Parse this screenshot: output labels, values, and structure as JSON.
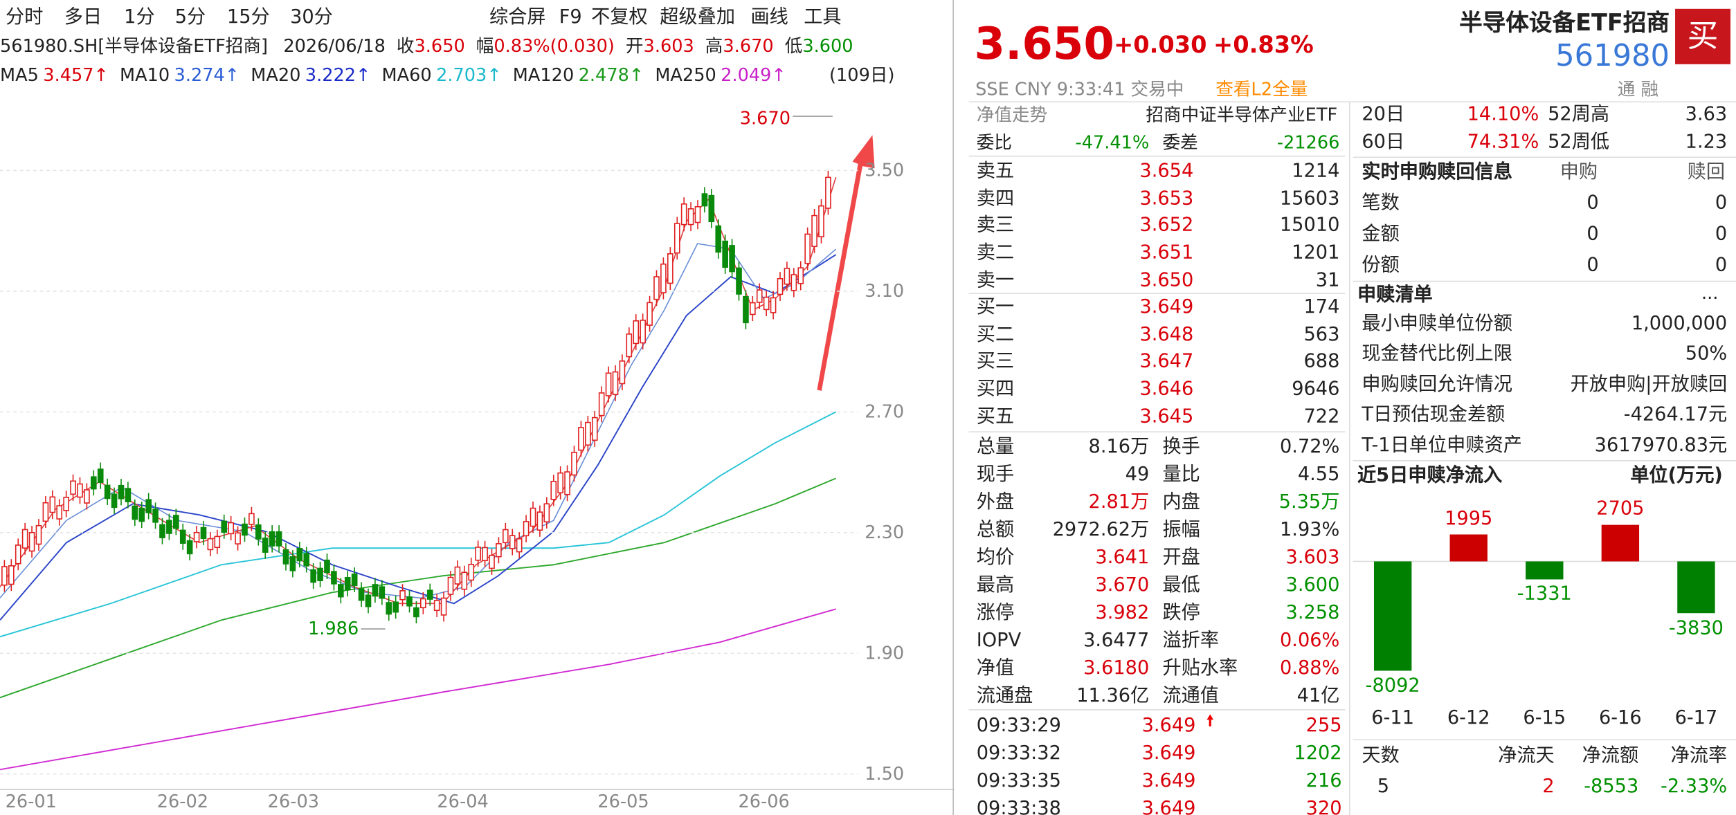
{
  "toolbar": {
    "periods": [
      "分时",
      "多日",
      "1分",
      "5分",
      "15分",
      "30分"
    ],
    "tools": [
      "综合屏",
      "F9",
      "不复权",
      "超级叠加",
      "画线",
      "工具"
    ]
  },
  "quote_line": {
    "code": "561980.SH[半导体设备ETF招商]",
    "date": "2026/06/18",
    "items": [
      {
        "label": "收",
        "value": "3.650"
      },
      {
        "label": "幅",
        "value": "0.83%(0.030)"
      },
      {
        "label": "开",
        "value": "3.603"
      },
      {
        "label": "高",
        "value": "3.670"
      },
      {
        "label": "低",
        "value": "3.600"
      }
    ]
  },
  "ma_line": {
    "items": [
      {
        "name": "MA5",
        "value": "3.457↑"
      },
      {
        "name": "MA10",
        "value": "3.274↑"
      },
      {
        "name": "MA20",
        "value": "3.222↑"
      },
      {
        "name": "MA60",
        "value": "2.703↑"
      },
      {
        "name": "MA120",
        "value": "2.478↑"
      },
      {
        "name": "MA250",
        "value": "2.049↑"
      }
    ],
    "range": "(109日)"
  },
  "chart": {
    "high_label": "3.670",
    "low_label": "1.986",
    "yticks": [
      {
        "value": 3.5,
        "label": "3.50"
      },
      {
        "value": 3.1,
        "label": "3.10"
      },
      {
        "value": 2.7,
        "label": "2.70"
      },
      {
        "value": 2.3,
        "label": "2.30"
      },
      {
        "value": 1.9,
        "label": "1.90"
      },
      {
        "value": 1.5,
        "label": "1.50"
      }
    ],
    "xlabels": [
      "26-01",
      "26-02",
      "26-03",
      "26-04",
      "26-05",
      "26-06"
    ]
  },
  "header": {
    "price": "3.650",
    "change": "+0.030",
    "change_pct": "+0.83%",
    "name": "半导体设备ETF招商",
    "code": "561980",
    "buy_button": "买",
    "status": "SSE  CNY  9:33:41  交易中",
    "l2_link": "查看L2全量",
    "tags": "通  融"
  },
  "nav_row": {
    "label": "净值走势",
    "value": "招商中证半导体产业ETF"
  },
  "ratio_row": [
    "委比",
    "-47.41%",
    "委差",
    "-21266"
  ],
  "asks": [
    [
      "卖五",
      "3.654",
      "1214"
    ],
    [
      "卖四",
      "3.653",
      "15603"
    ],
    [
      "卖三",
      "3.652",
      "15010"
    ],
    [
      "卖二",
      "3.651",
      "1201"
    ],
    [
      "卖一",
      "3.650",
      "31"
    ]
  ],
  "bids": [
    [
      "买一",
      "3.649",
      "174"
    ],
    [
      "买二",
      "3.648",
      "563"
    ],
    [
      "买三",
      "3.647",
      "688"
    ],
    [
      "买四",
      "3.646",
      "9646"
    ],
    [
      "买五",
      "3.645",
      "722"
    ]
  ],
  "stats": [
    [
      "总量",
      "8.16万",
      "换手",
      "0.72%"
    ],
    [
      "现手",
      "49",
      "量比",
      "4.55"
    ],
    [
      "外盘",
      "2.81万",
      "内盘",
      "5.35万"
    ],
    [
      "总额",
      "2972.62万",
      "振幅",
      "1.93%"
    ],
    [
      "均价",
      "3.641",
      "开盘",
      "3.603"
    ],
    [
      "最高",
      "3.670",
      "最低",
      "3.600"
    ],
    [
      "涨停",
      "3.982",
      "跌停",
      "3.258"
    ],
    [
      "IOPV",
      "3.6477",
      "溢折率",
      "0.06%"
    ],
    [
      "净值",
      "3.6180",
      "升贴水率",
      "0.88%"
    ],
    [
      "流通盘",
      "11.36亿",
      "流通值",
      "41亿"
    ]
  ],
  "ticks": [
    [
      "09:33:29",
      "3.649",
      "255"
    ],
    [
      "09:33:32",
      "3.649",
      "1202"
    ],
    [
      "09:33:35",
      "3.649",
      "216"
    ],
    [
      "09:33:38",
      "3.649",
      "320"
    ]
  ],
  "period_returns": [
    [
      "20日",
      "14.10%",
      "52周高",
      "3.63"
    ],
    [
      "60日",
      "74.31%",
      "52周低",
      "1.23"
    ]
  ],
  "creation_info": {
    "title": "实时申购赎回信息",
    "columns": [
      "申购",
      "赎回"
    ],
    "rows": [
      [
        "笔数",
        "0",
        "0"
      ],
      [
        "金额",
        "0",
        "0"
      ],
      [
        "份额",
        "0",
        "0"
      ]
    ]
  },
  "creation_list": {
    "title": "申赎清单",
    "more": "...",
    "rows": [
      [
        "最小申赎单位份额",
        "1,000,000"
      ],
      [
        "现金替代比例上限",
        "50%"
      ],
      [
        "申购赎回允许情况",
        "开放申购|开放赎回"
      ],
      [
        "T日预估现金差额",
        "-4264.17元"
      ],
      [
        "T-1日单位申赎资产",
        "3617970.83元"
      ]
    ]
  },
  "net_flow": {
    "title": "近5日申赎净流入",
    "unit": "单位(万元)",
    "categories": [
      "6-11",
      "6-12",
      "6-15",
      "6-16",
      "6-17"
    ],
    "values": [
      -8092,
      1995,
      -1331,
      2705,
      -3830
    ]
  },
  "flow_table": {
    "columns": [
      "天数",
      "净流天",
      "净流额",
      "净流率"
    ],
    "rows": [
      [
        "5",
        "2",
        "-8553",
        "-2.33%"
      ]
    ]
  }
}
